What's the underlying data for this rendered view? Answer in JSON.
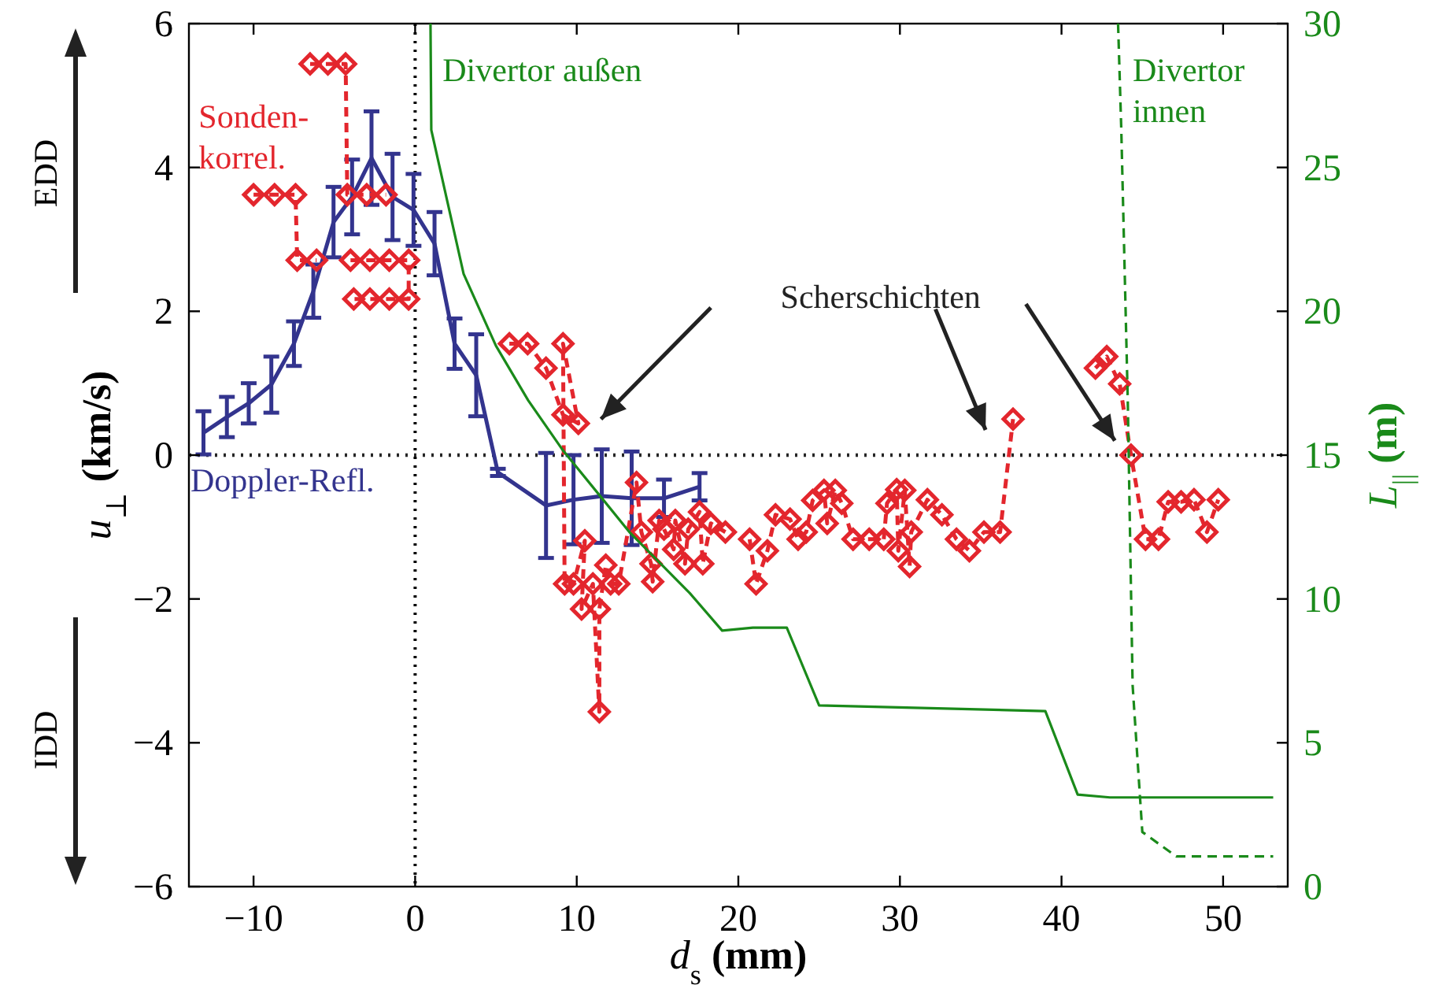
{
  "chart_data": {
    "type": "line",
    "xlabel": "d$_{s}$ (mm)",
    "ylabel": "u$_{⊥}$ (km/s)",
    "y2label": "L$_{||}$ (m)",
    "xlim": [
      -14,
      54
    ],
    "xticks": [
      {
        "value": -10,
        "label": "−10"
      },
      0,
      10,
      20,
      30,
      40,
      50
    ],
    "ylim": [
      -6,
      6
    ],
    "yticks": [
      {
        "value": -6,
        "label": "−6"
      },
      {
        "value": -4,
        "label": "−4"
      },
      {
        "value": -2,
        "label": "−2"
      },
      0,
      2,
      4,
      6
    ],
    "y2lim": [
      0,
      30
    ],
    "y2ticks": [
      0,
      5,
      10,
      15,
      20,
      25,
      30
    ],
    "grid": false,
    "legend": false,
    "ref_lines": [
      {
        "axis": "x",
        "value": 0,
        "line_style": "dotted",
        "color": "#000000"
      },
      {
        "axis": "y",
        "value": 0,
        "line_style": "dotted",
        "color": "#262626"
      }
    ],
    "annotations": [
      "Scherschichten",
      "EDD",
      "IDD"
    ],
    "series": [
      {
        "name": "Doppler-Refl.",
        "color": "#33348e",
        "marker": "none",
        "line_style": "solid",
        "x": [
          -13.1,
          -11.65,
          -10.3,
          -8.9,
          -7.5,
          -6.3,
          -5.05,
          -3.9,
          -2.7,
          -1.4,
          -0.1,
          1.2,
          2.44,
          3.78,
          5.12,
          8.1,
          9.8,
          11.55,
          13.4,
          15.4,
          17.6
        ],
        "values": [
          0.31,
          0.53,
          0.72,
          0.98,
          1.55,
          2.28,
          3.24,
          3.59,
          4.13,
          3.59,
          3.41,
          2.94,
          1.55,
          1.11,
          -0.24,
          -0.7,
          -0.62,
          -0.57,
          -0.6,
          -0.6,
          -0.44
        ],
        "errors": [
          0.3,
          0.28,
          0.28,
          0.39,
          0.31,
          0.37,
          0.49,
          0.52,
          0.65,
          0.6,
          0.5,
          0.44,
          0.35,
          0.57,
          0.05,
          0.73,
          0.62,
          0.65,
          0.65,
          0.26,
          0.19
        ]
      },
      {
        "name": "Sonden-\nkorrel.",
        "color": "#e3262d",
        "marker": "diamond",
        "line_style": "dashed",
        "x": [
          -10.0,
          -8.7,
          -7.4,
          -7.3,
          -6.1
        ],
        "values": [
          3.62,
          3.62,
          3.62,
          2.71,
          2.71
        ]
      },
      {
        "color": "#e3262d",
        "marker": "diamond",
        "line_style": "dashed",
        "x": [
          -6.5,
          -5.4,
          -4.3,
          -4.2,
          -3.0,
          -1.8
        ],
        "values": [
          5.44,
          5.44,
          5.44,
          3.62,
          3.62,
          3.62
        ]
      },
      {
        "color": "#e3262d",
        "marker": "diamond",
        "line_style": "dashed",
        "x": [
          -4.0,
          -2.8,
          -1.6,
          -0.4,
          -0.4,
          -1.6,
          -2.8,
          -3.8
        ],
        "values": [
          2.71,
          2.71,
          2.71,
          2.71,
          2.17,
          2.17,
          2.17,
          2.17
        ]
      },
      {
        "color": "#e3262d",
        "marker": "diamond",
        "line_style": "dashed",
        "x": [
          5.83,
          6.96,
          8.1,
          9.15,
          10.1,
          9.15,
          9.25,
          9.8,
          10.5,
          10.3,
          11.0,
          11.4,
          11.4,
          11.8,
          12.1,
          12.6,
          13.7,
          14.0,
          14.6,
          14.7,
          15.1,
          15.4,
          16.0,
          16.1,
          16.7,
          16.9,
          17.6,
          17.8,
          18.3,
          19.2
        ],
        "values": [
          1.55,
          1.55,
          1.21,
          0.56,
          0.44,
          1.55,
          -1.79,
          -1.79,
          -1.19,
          -2.14,
          -1.79,
          -3.57,
          -2.14,
          -1.53,
          -1.79,
          -1.79,
          -0.38,
          -1.07,
          -1.51,
          -1.76,
          -0.91,
          -1.03,
          -1.31,
          -0.91,
          -1.51,
          -1.03,
          -0.79,
          -1.51,
          -0.95,
          -1.07
        ]
      },
      {
        "color": "#e3262d",
        "marker": "diamond",
        "line_style": "dashed",
        "x": [
          20.7,
          21.1,
          21.8,
          22.3,
          23.2,
          23.7,
          24.2,
          24.6,
          25.3,
          25.5,
          26.0,
          26.4,
          27.1,
          28.1,
          29.0,
          29.2,
          29.8,
          29.9,
          30.3,
          30.6,
          30.7,
          31.7,
          32.6,
          33.5,
          34.3,
          35.2,
          36.2,
          37.0
        ],
        "values": [
          -1.17,
          -1.79,
          -1.33,
          -0.83,
          -0.89,
          -1.17,
          -1.07,
          -0.63,
          -0.49,
          -0.95,
          -0.49,
          -0.67,
          -1.17,
          -1.17,
          -1.17,
          -0.67,
          -0.48,
          -1.33,
          -0.49,
          -1.55,
          -1.07,
          -0.62,
          -0.83,
          -1.17,
          -1.33,
          -1.07,
          -1.07,
          0.5
        ]
      },
      {
        "color": "#e3262d",
        "marker": "diamond",
        "line_style": "dashed",
        "x": [
          42.1,
          42.8,
          43.6,
          44.3,
          45.2,
          46.0,
          46.6,
          47.4,
          48.2,
          49.0,
          49.7
        ],
        "values": [
          1.21,
          1.37,
          0.99,
          0.0,
          -1.17,
          -1.17,
          -0.65,
          -0.65,
          -0.62,
          -1.07,
          -0.62
        ]
      },
      {
        "name": "Divertor außen",
        "color": "#1a8a1a",
        "marker": "none",
        "line_style": "solid",
        "axis": "y2",
        "x": [
          0.95,
          1.0,
          3.0,
          5.0,
          7.0,
          9.1,
          13.3,
          17.0,
          19.0,
          20.9,
          23.0,
          25.0,
          39.0,
          41.0,
          43.0,
          53.1
        ],
        "values": [
          30,
          26.3,
          21.3,
          18.8,
          16.9,
          15.2,
          12.3,
          10.2,
          8.9,
          9.0,
          9.0,
          6.3,
          6.1,
          3.2,
          3.1,
          3.1
        ]
      },
      {
        "name": "Divertor\ninnen",
        "color": "#1a8a1a",
        "marker": "none",
        "line_style": "dashed",
        "axis": "y2",
        "x": [
          43.5,
          43.7,
          44.1,
          44.4,
          45.0,
          47.1,
          53.1
        ],
        "values": [
          30,
          26.3,
          16.9,
          7.0,
          1.9,
          1.05,
          1.05
        ]
      }
    ]
  }
}
